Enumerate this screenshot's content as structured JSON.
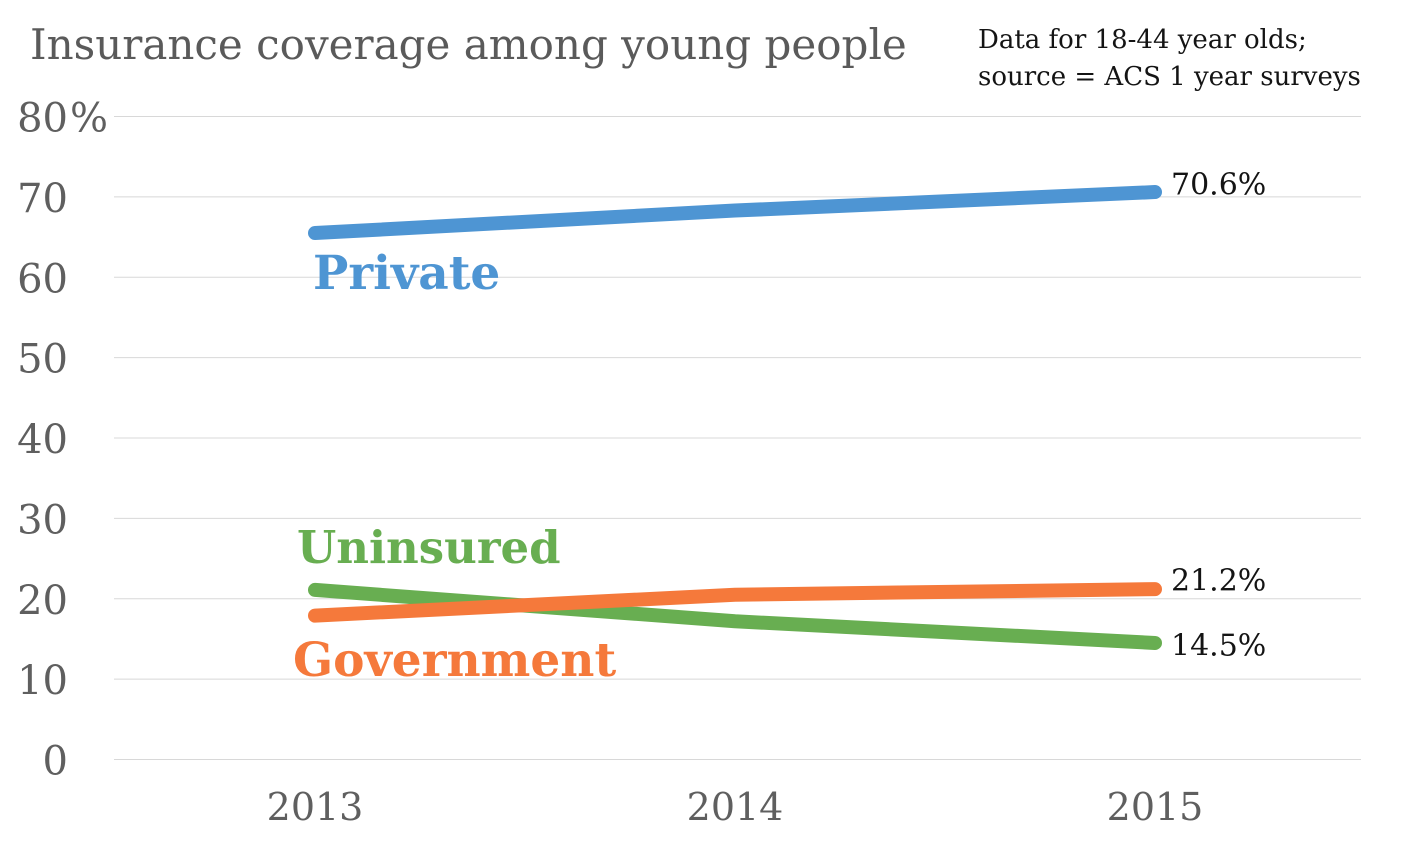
{
  "title": {
    "text": "Insurance coverage among young people",
    "color": "#5a5a5a"
  },
  "note": {
    "line1": "Data for 18-44 year olds;",
    "line2": "source = ACS 1 year surveys",
    "color": "#141414"
  },
  "chart_data": {
    "type": "line",
    "title": "Insurance coverage among young people",
    "x": [
      2013,
      2014,
      2015
    ],
    "x_tick_labels": [
      "2013",
      "2014",
      "2015"
    ],
    "ylim": [
      0,
      80
    ],
    "y_tick_interval": 10,
    "y_ticks": [
      {
        "value": 80,
        "label": "80",
        "suffix": "%"
      },
      {
        "value": 70,
        "label": "70",
        "suffix": ""
      },
      {
        "value": 60,
        "label": "60",
        "suffix": ""
      },
      {
        "value": 50,
        "label": "50",
        "suffix": ""
      },
      {
        "value": 40,
        "label": "40",
        "suffix": ""
      },
      {
        "value": 30,
        "label": "30",
        "suffix": ""
      },
      {
        "value": 20,
        "label": "20",
        "suffix": ""
      },
      {
        "value": 10,
        "label": "10",
        "suffix": ""
      },
      {
        "value": 0,
        "label": "0",
        "suffix": ""
      }
    ],
    "grid": "horizontal-only",
    "gridline_color": "#d8d8d8",
    "tick_label_color": "#5f5f5f",
    "value_label_color": "#141414",
    "legend": "direct-labels-on-chart",
    "series": [
      {
        "name": "Private",
        "color": "#4e95d3",
        "values": [
          65.5,
          68.3,
          70.6
        ],
        "end_label": "70.6%"
      },
      {
        "name": "Uninsured",
        "color": "#68ae51",
        "values": [
          21.1,
          17.2,
          14.5
        ],
        "end_label": "14.5%"
      },
      {
        "name": "Government",
        "color": "#f5793b",
        "values": [
          17.9,
          20.5,
          21.2
        ],
        "end_label": "21.2%"
      }
    ]
  }
}
